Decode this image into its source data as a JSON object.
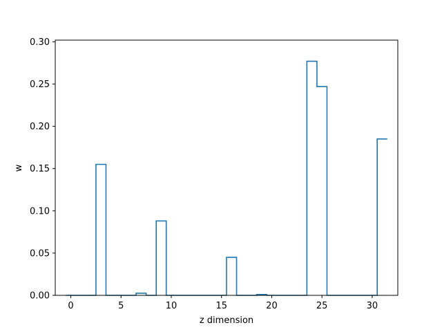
{
  "chart_data": {
    "type": "line",
    "style": "step-histogram",
    "title": "",
    "xlabel": "z dimension",
    "ylabel": "w",
    "xlim": [
      -1.55,
      32.55
    ],
    "ylim": [
      0.0,
      0.302
    ],
    "grid": false,
    "legend": "none",
    "color": "#1f77b4",
    "x": [
      0,
      1,
      2,
      3,
      4,
      5,
      6,
      7,
      8,
      9,
      10,
      11,
      12,
      13,
      14,
      15,
      16,
      17,
      18,
      19,
      20,
      21,
      22,
      23,
      24,
      25,
      26,
      27,
      28,
      29,
      30,
      31
    ],
    "values": [
      0,
      0,
      0,
      0.155,
      0,
      0,
      0,
      0.0025,
      0,
      0.088,
      0,
      0,
      0,
      0,
      0,
      0,
      0.045,
      0,
      0,
      0.001,
      0,
      0,
      0,
      0,
      0.277,
      0.247,
      0,
      0,
      0,
      0,
      0,
      0.185
    ],
    "xticks": [
      "0",
      "5",
      "10",
      "15",
      "20",
      "25",
      "30"
    ],
    "yticks": [
      "0.00",
      "0.05",
      "0.10",
      "0.15",
      "0.20",
      "0.25",
      "0.30"
    ]
  }
}
